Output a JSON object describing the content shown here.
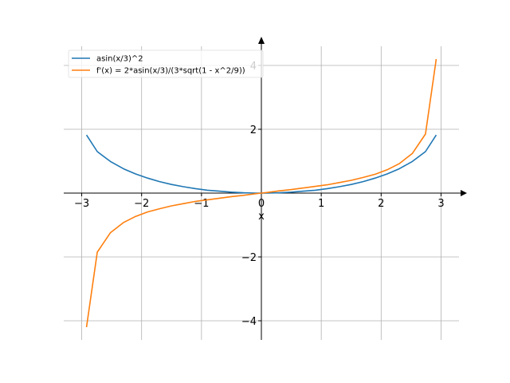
{
  "chart_data": {
    "type": "line",
    "xlabel": "x",
    "ylabel": "",
    "xlim": [
      -3.3,
      3.3
    ],
    "ylim": [
      -4.6,
      4.6
    ],
    "x_ticks": [
      -3,
      -2,
      -1,
      0,
      1,
      2,
      3
    ],
    "y_ticks": [
      -4,
      -2,
      0,
      2,
      4
    ],
    "x_tick_labels": [
      "−3",
      "−2",
      "−1",
      "0",
      "1",
      "2",
      "3"
    ],
    "y_tick_labels": [
      "−4",
      "−2",
      "0",
      "2",
      "4"
    ],
    "grid": true,
    "legend_position": "top-left",
    "series": [
      {
        "name": "asin(x/3)^2",
        "color": "#1f77b4",
        "x": [
          -2.92,
          -2.74,
          -2.52,
          -2.3,
          -2.1,
          -1.9,
          -1.7,
          -1.5,
          -1.3,
          -1.1,
          -0.9,
          -0.7,
          -0.5,
          -0.3,
          -0.1,
          0.0,
          0.1,
          0.3,
          0.5,
          0.7,
          0.9,
          1.1,
          1.3,
          1.5,
          1.7,
          1.9,
          2.1,
          2.3,
          2.52,
          2.74,
          2.92
        ],
        "y": [
          1.82,
          1.3,
          0.99,
          0.76,
          0.6,
          0.47,
          0.36,
          0.27,
          0.2,
          0.14,
          0.09,
          0.06,
          0.03,
          0.01,
          0.0,
          0.0,
          0.0,
          0.01,
          0.03,
          0.06,
          0.09,
          0.14,
          0.2,
          0.27,
          0.36,
          0.47,
          0.6,
          0.76,
          0.99,
          1.3,
          1.82
        ]
      },
      {
        "name": "f'(x) = 2*asin(x/3)/(3*sqrt(1 - x^2/9))",
        "color": "#ff7f0e",
        "x": [
          -2.92,
          -2.74,
          -2.52,
          -2.3,
          -2.1,
          -1.9,
          -1.7,
          -1.5,
          -1.3,
          -1.1,
          -0.9,
          -0.7,
          -0.5,
          -0.3,
          -0.1,
          0.0,
          0.1,
          0.3,
          0.5,
          0.7,
          0.9,
          1.1,
          1.3,
          1.5,
          1.7,
          1.9,
          2.1,
          2.3,
          2.52,
          2.74,
          2.92
        ],
        "y": [
          -4.2,
          -1.85,
          -1.24,
          -0.92,
          -0.73,
          -0.59,
          -0.49,
          -0.4,
          -0.33,
          -0.26,
          -0.21,
          -0.16,
          -0.11,
          -0.07,
          -0.02,
          0.0,
          0.02,
          0.07,
          0.11,
          0.16,
          0.21,
          0.26,
          0.33,
          0.4,
          0.49,
          0.59,
          0.73,
          0.92,
          1.24,
          1.85,
          4.2
        ]
      }
    ]
  }
}
